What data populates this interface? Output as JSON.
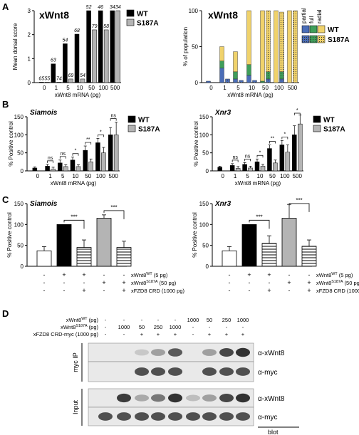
{
  "panels": {
    "A": "A",
    "B": "B",
    "C": "C",
    "D": "D"
  },
  "colors": {
    "wt": "#000000",
    "s187a": "#b4b4b4",
    "partial_blue": "#4a6db8",
    "full_green": "#3f9e5a",
    "radial_yellow": "#f0d26b",
    "hatch": "#555555"
  },
  "chart_data": [
    {
      "id": "A-left",
      "type": "bar",
      "title": "xWnt8",
      "xlabel": "xWnt8 mRNA (pg)",
      "ylabel": "Mean dorsal score",
      "categories": [
        "0",
        "1",
        "5",
        "10",
        "50",
        "100",
        "500"
      ],
      "ylim": [
        0,
        3
      ],
      "yticks": [
        "0",
        "1",
        "2",
        "3"
      ],
      "series": [
        {
          "name": "WT",
          "values": [
            0.02,
            0.78,
            1.62,
            2.02,
            3.0,
            3.0,
            3.0
          ],
          "n": [
            "65",
            "63",
            "54",
            "68",
            "52",
            "46",
            "34"
          ]
        },
        {
          "name": "S187A",
          "values": [
            0.02,
            0.02,
            0.15,
            0.15,
            2.2,
            2.2,
            3.0
          ],
          "n": [
            "55",
            "74",
            "69",
            "54",
            "79",
            "58",
            "34"
          ]
        }
      ],
      "legend": "top-right"
    },
    {
      "id": "A-right",
      "type": "bar",
      "title": "xWnt8",
      "xlabel": "xWnt8 mRNA (pg)",
      "ylabel": "% of population",
      "categories": [
        "0",
        "1",
        "5",
        "10",
        "50",
        "100",
        "500"
      ],
      "ylim": [
        0,
        100
      ],
      "yticks": [
        "0",
        "50",
        "100"
      ],
      "stack_labels": [
        "partial",
        "full",
        "radial"
      ],
      "series": [
        {
          "name": "WT",
          "stacks": [
            [
              2,
              0,
              0
            ],
            [
              20,
              10,
              20
            ],
            [
              5,
              10,
              28
            ],
            [
              10,
              15,
              75
            ],
            [
              0,
              2,
              98
            ],
            [
              0,
              0,
              100
            ],
            [
              0,
              0,
              100
            ]
          ]
        },
        {
          "name": "S187A",
          "stacks": [
            [
              0,
              0,
              0
            ],
            [
              5,
              0,
              0
            ],
            [
              3,
              0,
              0
            ],
            [
              3,
              0,
              0
            ],
            [
              5,
              10,
              85
            ],
            [
              5,
              10,
              83
            ],
            [
              0,
              0,
              100
            ]
          ]
        }
      ],
      "legend": "top-right"
    },
    {
      "id": "B-left",
      "type": "bar",
      "title": "Siamois",
      "xlabel": "xWnt8 mRNA (pg)",
      "ylabel": "% Positive control",
      "categories": [
        "0",
        "1",
        "5",
        "10",
        "50",
        "100",
        "500"
      ],
      "ylim": [
        0,
        150
      ],
      "yticks": [
        "0",
        "50",
        "100",
        "150"
      ],
      "series": [
        {
          "name": "WT",
          "values": [
            8,
            13,
            22,
            30,
            57,
            78,
            100
          ],
          "err": [
            3,
            5,
            8,
            8,
            12,
            12,
            20
          ]
        },
        {
          "name": "S187A",
          "values": [
            0,
            5,
            12,
            12,
            25,
            50,
            100
          ],
          "err": [
            0,
            5,
            5,
            5,
            8,
            15,
            35
          ]
        }
      ],
      "sig": [
        "ns",
        "ns",
        "*",
        "**",
        "*",
        "ns"
      ],
      "legend": "top-right"
    },
    {
      "id": "B-right",
      "type": "bar",
      "title": "Xnr3",
      "xlabel": "xWnt8 mRNA (pg)",
      "ylabel": "% Positive control",
      "categories": [
        "0",
        "1",
        "5",
        "10",
        "50",
        "100",
        "500"
      ],
      "ylim": [
        0,
        150
      ],
      "yticks": [
        "0",
        "50",
        "100",
        "150"
      ],
      "series": [
        {
          "name": "WT",
          "values": [
            10,
            15,
            18,
            25,
            62,
            72,
            100
          ],
          "err": [
            3,
            5,
            5,
            8,
            10,
            12,
            25
          ]
        },
        {
          "name": "S187A",
          "values": [
            0,
            7,
            8,
            13,
            22,
            52,
            130
          ],
          "err": [
            0,
            5,
            5,
            5,
            8,
            20,
            25
          ]
        }
      ],
      "sig": [
        "ns",
        "ns",
        "*",
        "**",
        "*",
        "*"
      ],
      "legend": "top-right"
    },
    {
      "id": "C-left",
      "type": "bar",
      "title": "Siamois",
      "ylabel": "% Positive control",
      "ylim": [
        0,
        150
      ],
      "yticks": [
        "0",
        "50",
        "100",
        "150"
      ],
      "values": [
        37,
        100,
        45,
        115,
        45
      ],
      "err": [
        10,
        0,
        18,
        8,
        15
      ],
      "styles": [
        "white",
        "black",
        "hatch",
        "gray",
        "hatch"
      ],
      "sig": [
        "***",
        "***"
      ]
    },
    {
      "id": "C-right",
      "type": "bar",
      "title": "Xnr3",
      "ylabel": "% Positive control",
      "ylim": [
        0,
        150
      ],
      "yticks": [
        "0",
        "50",
        "100",
        "150"
      ],
      "values": [
        37,
        100,
        55,
        115,
        48
      ],
      "err": [
        10,
        0,
        18,
        33,
        15
      ],
      "styles": [
        "white",
        "black",
        "hatch",
        "gray",
        "hatch"
      ],
      "sig": [
        "***",
        "***"
      ]
    }
  ],
  "c_table": {
    "rows": [
      {
        "label": "xWnt8WT (5 pg)",
        "base": "xWnt8",
        "sup": "WT",
        "rest": " (5 pg)",
        "vals": [
          "-",
          "+",
          "+",
          "-",
          "-"
        ]
      },
      {
        "label": "xWnt8S187A (50 pg)",
        "base": "xWnt8",
        "sup": "S187A",
        "rest": " (50 pg)",
        "vals": [
          "-",
          "-",
          "-",
          "+",
          "+"
        ]
      },
      {
        "label": "xFZD8 CRD (1000 pg)",
        "base": "xFZD8 CRD (1000 pg)",
        "sup": "",
        "rest": "",
        "vals": [
          "-",
          "-",
          "+",
          "-",
          "+"
        ]
      }
    ]
  },
  "d_blot": {
    "rows": [
      {
        "label": "xWnt8WT (pg)",
        "base": "xWnt8",
        "sup": "WT",
        "rest": " (pg)",
        "vals": [
          "-",
          "-",
          "-",
          "-",
          "-",
          "1000",
          "50",
          "250",
          "1000"
        ]
      },
      {
        "label": "xWnt8S187A (pg)",
        "base": "xWnt8",
        "sup": "S187A",
        "rest": " (pg)",
        "vals": [
          "-",
          "1000",
          "50",
          "250",
          "1000",
          "-",
          "-",
          "-",
          "-"
        ]
      },
      {
        "label": "xFZD8 CRD-myc (1000 pg)",
        "base": "xFZD8 CRD-myc (1000 pg)",
        "sup": "",
        "rest": "",
        "vals": [
          "-",
          "-",
          "+",
          "+",
          "+",
          "-",
          "+",
          "+",
          "+"
        ]
      }
    ],
    "groups": [
      "myc IP",
      "Input"
    ],
    "bands": [
      "α-xWnt8",
      "α-myc",
      "α-xWnt8",
      "α-myc"
    ],
    "footer": "blot",
    "intensity": [
      [
        0,
        0,
        0.15,
        0.35,
        0.7,
        0,
        0.35,
        0.8,
        0.9
      ],
      [
        0,
        0,
        0.75,
        0.75,
        0.75,
        0,
        0.75,
        0.75,
        0.75
      ],
      [
        0,
        0.85,
        0.3,
        0.55,
        0.9,
        0.2,
        0.35,
        0.8,
        0.9
      ],
      [
        0.75,
        0.75,
        0.75,
        0.75,
        0.75,
        0.75,
        0.75,
        0.75,
        0.75
      ]
    ]
  }
}
